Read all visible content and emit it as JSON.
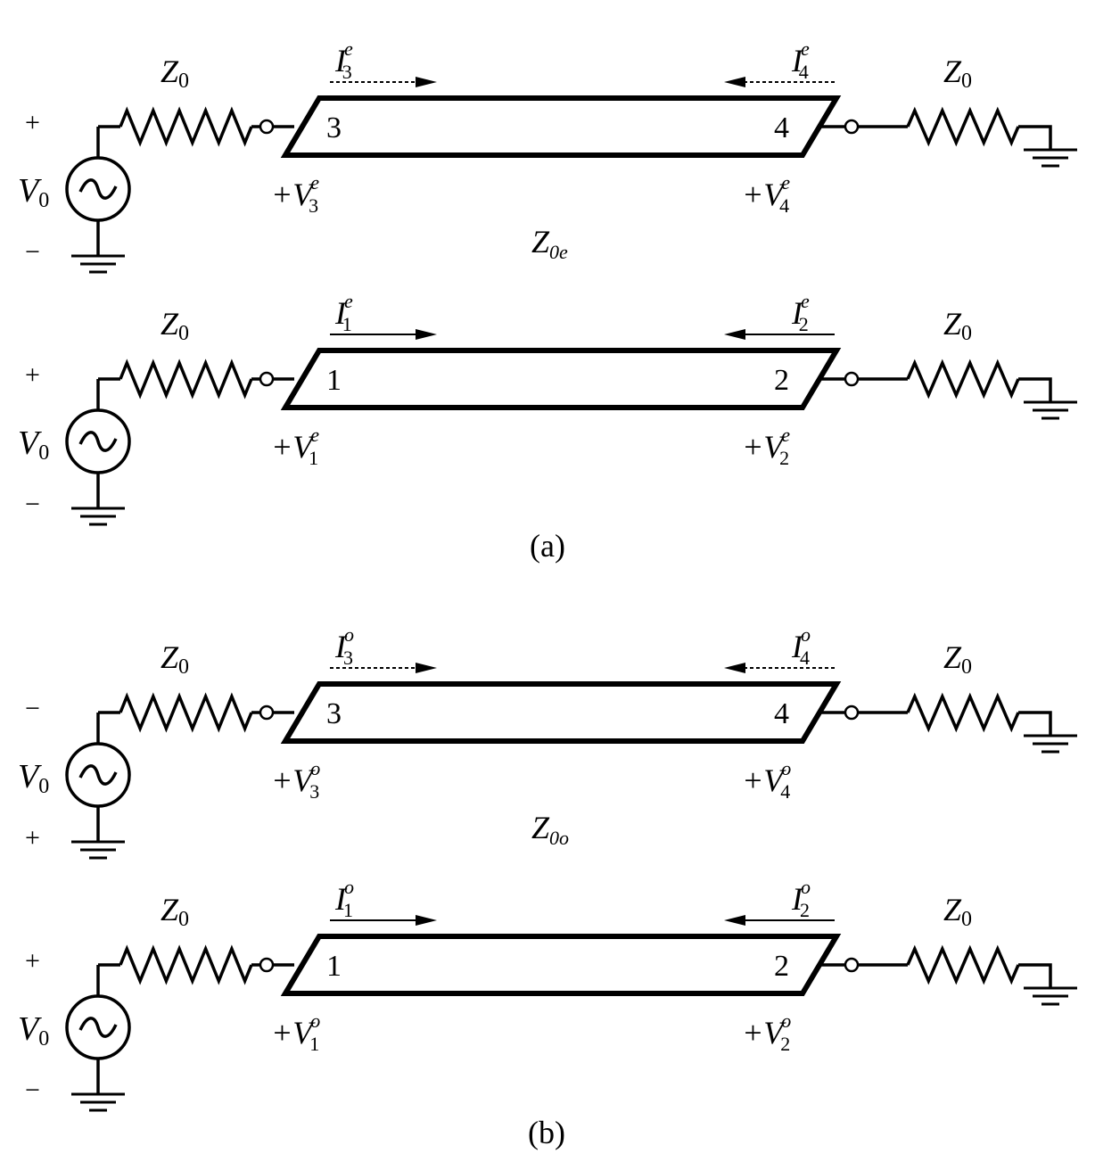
{
  "figure": {
    "caption_a": "(a)",
    "caption_b": "(b)"
  },
  "panels": [
    {
      "id": "even-top",
      "source_top": "+",
      "source_bottom": "−",
      "source_label": "V",
      "source_sub": "0",
      "resistor_left": "Z",
      "resistor_left_sub": "0",
      "resistor_right": "Z",
      "resistor_right_sub": "0",
      "port_left": "3",
      "port_right": "4",
      "current_left": "I",
      "current_left_sub": "3",
      "current_left_sup": "e",
      "current_right": "I",
      "current_right_sub": "4",
      "current_right_sup": "e",
      "voltage_left": "+V",
      "voltage_left_sub": "3",
      "voltage_left_sup": "e",
      "voltage_right": "+V",
      "voltage_right_sub": "4",
      "voltage_right_sup": "e",
      "dashed": true
    },
    {
      "id": "even-bottom",
      "source_top": "+",
      "source_bottom": "−",
      "source_label": "V",
      "source_sub": "0",
      "resistor_left": "Z",
      "resistor_left_sub": "0",
      "resistor_right": "Z",
      "resistor_right_sub": "0",
      "port_left": "1",
      "port_right": "2",
      "current_left": "I",
      "current_left_sub": "1",
      "current_left_sup": "e",
      "current_right": "I",
      "current_right_sub": "2",
      "current_right_sup": "e",
      "voltage_left": "+V",
      "voltage_left_sub": "1",
      "voltage_left_sup": "e",
      "voltage_right": "+V",
      "voltage_right_sub": "2",
      "voltage_right_sup": "e",
      "dashed": false
    },
    {
      "id": "odd-top",
      "source_top": "−",
      "source_bottom": "+",
      "source_label": "V",
      "source_sub": "0",
      "resistor_left": "Z",
      "resistor_left_sub": "0",
      "resistor_right": "Z",
      "resistor_right_sub": "0",
      "port_left": "3",
      "port_right": "4",
      "current_left": "I",
      "current_left_sub": "3",
      "current_left_sup": "o",
      "current_right": "I",
      "current_right_sub": "4",
      "current_right_sup": "o",
      "voltage_left": "+V",
      "voltage_left_sub": "3",
      "voltage_left_sup": "o",
      "voltage_right": "+V",
      "voltage_right_sub": "4",
      "voltage_right_sup": "o",
      "dashed": true
    },
    {
      "id": "odd-bottom",
      "source_top": "+",
      "source_bottom": "−",
      "source_label": "V",
      "source_sub": "0",
      "resistor_left": "Z",
      "resistor_left_sub": "0",
      "resistor_right": "Z",
      "resistor_right_sub": "0",
      "port_left": "1",
      "port_right": "2",
      "current_left": "I",
      "current_left_sub": "1",
      "current_left_sup": "o",
      "current_right": "I",
      "current_right_sub": "2",
      "current_right_sup": "o",
      "voltage_left": "+V",
      "voltage_left_sub": "1",
      "voltage_left_sup": "o",
      "voltage_right": "+V",
      "voltage_right_sub": "2",
      "voltage_right_sup": "o",
      "dashed": false
    }
  ],
  "impedance_labels": [
    {
      "main": "Z",
      "sub": "0e"
    },
    {
      "main": "Z",
      "sub": "0o"
    }
  ]
}
